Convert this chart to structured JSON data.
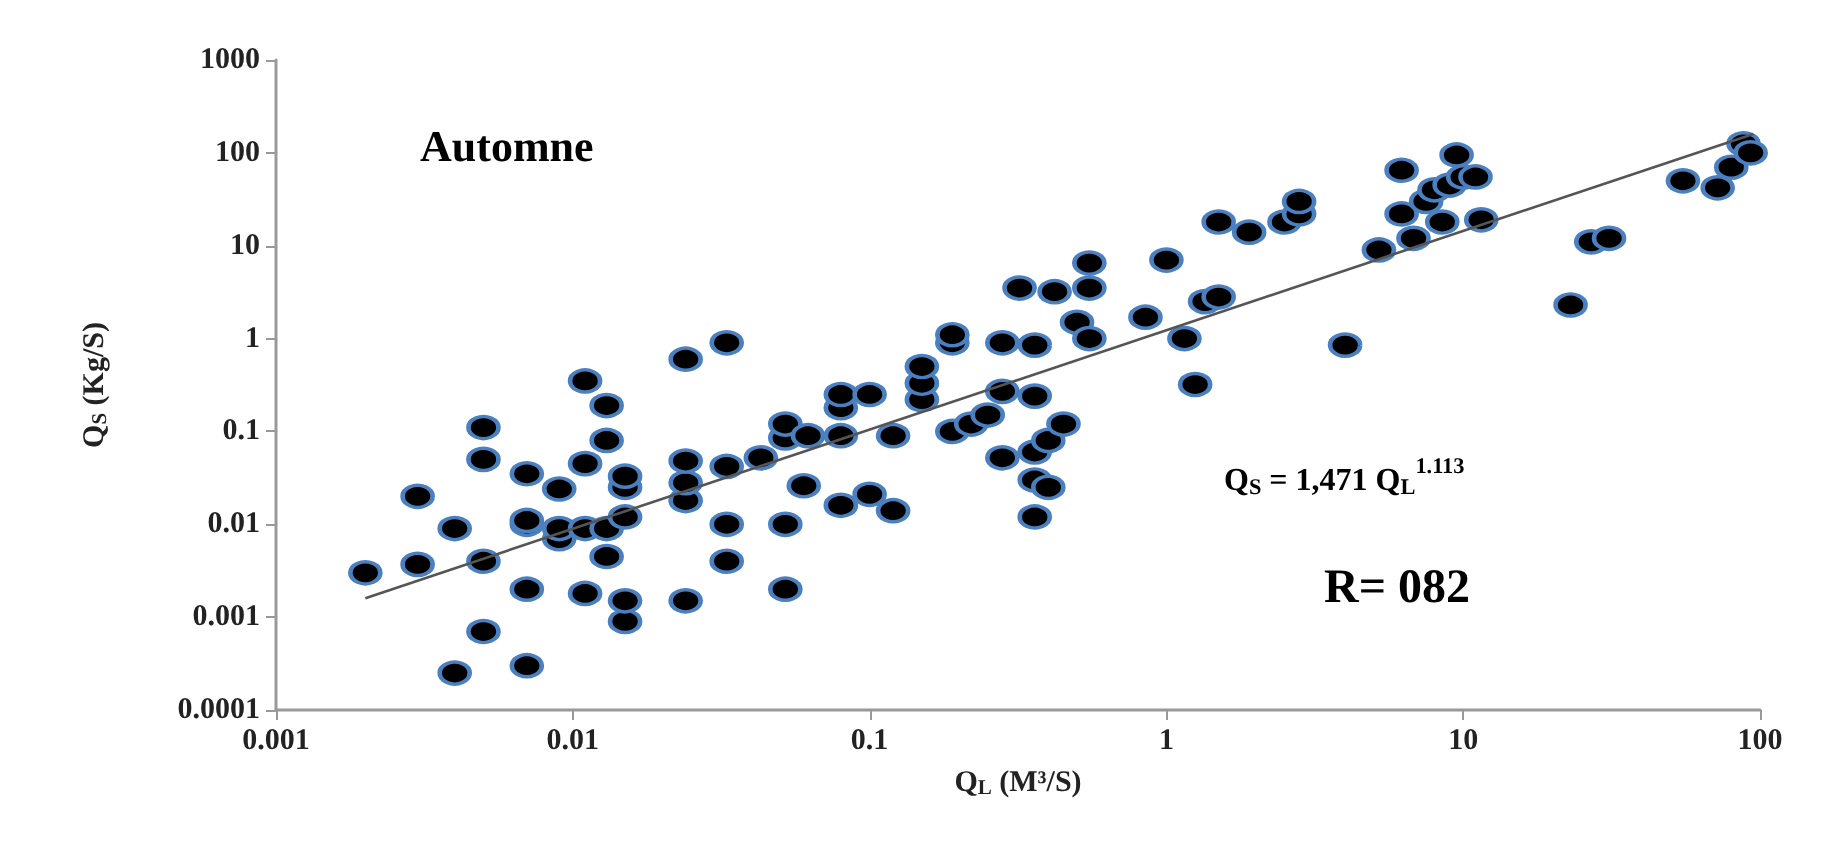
{
  "chart_data": {
    "type": "scatter",
    "xlabel": "Q$_{L}$ (M³/S)",
    "ylabel": "Q$_{S}$ (Kg/S)",
    "log": "xy",
    "grid": false,
    "marker": "circle",
    "xlim": [
      0.001,
      100
    ],
    "xticks": [
      0.001,
      0.01,
      0.1,
      1,
      10,
      100
    ],
    "ylim": [
      0.0001,
      1000
    ],
    "yticks": [
      0.0001,
      0.001,
      0.01,
      0.1,
      1,
      10,
      100,
      1000
    ],
    "annotations": [
      "Automne",
      "Q$_{S}$ = 1,471 Q$_{L}$$^{1.113}$",
      "R= 082"
    ],
    "series": [
      {
        "color": "#000000",
        "x": [
          0.002,
          0.003,
          0.003,
          0.004,
          0.004,
          0.005,
          0.005,
          0.005,
          0.005,
          0.007,
          0.007,
          0.007,
          0.007,
          0.007,
          0.009,
          0.009,
          0.009,
          0.011,
          0.011,
          0.011,
          0.011,
          0.013,
          0.013,
          0.013,
          0.013,
          0.015,
          0.015,
          0.015,
          0.015,
          0.015,
          0.024,
          0.024,
          0.024,
          0.024,
          0.024,
          0.033,
          0.033,
          0.033,
          0.033,
          0.043,
          0.052,
          0.052,
          0.052,
          0.052,
          0.06,
          0.062,
          0.08,
          0.08,
          0.08,
          0.08,
          0.1,
          0.1,
          0.12,
          0.12,
          0.15,
          0.15,
          0.15,
          0.19,
          0.19,
          0.19,
          0.22,
          0.25,
          0.28,
          0.28,
          0.28,
          0.32,
          0.36,
          0.36,
          0.36,
          0.36,
          0.36,
          0.4,
          0.4,
          0.42,
          0.45,
          0.5,
          0.55,
          0.55,
          0.55,
          0.85,
          1.0,
          1.15,
          1.25,
          1.35,
          1.5,
          1.5,
          1.9,
          2.5,
          2.8,
          2.8,
          4,
          5.2,
          6.2,
          6.2,
          6.8,
          7.5,
          8,
          8.5,
          9,
          9.5,
          10,
          11,
          11.5,
          23,
          27,
          31,
          55,
          72,
          80,
          88,
          93
        ],
        "values": [
          0.003,
          0.0037,
          0.02,
          0.009,
          0.00025,
          0.0007,
          0.004,
          0.05,
          0.11,
          0.0003,
          0.002,
          0.01,
          0.035,
          0.011,
          0.007,
          0.009,
          0.024,
          0.0018,
          0.009,
          0.045,
          0.35,
          0.0045,
          0.009,
          0.08,
          0.19,
          0.0009,
          0.0015,
          0.012,
          0.025,
          0.033,
          0.0015,
          0.018,
          0.028,
          0.048,
          0.6,
          0.004,
          0.01,
          0.042,
          0.9,
          0.052,
          0.002,
          0.01,
          0.085,
          0.12,
          0.026,
          0.09,
          0.016,
          0.09,
          0.18,
          0.25,
          0.021,
          0.25,
          0.014,
          0.09,
          0.22,
          0.33,
          0.5,
          0.1,
          0.9,
          1.1,
          0.12,
          0.15,
          0.052,
          0.27,
          0.9,
          3.5,
          0.012,
          0.03,
          0.06,
          0.24,
          0.85,
          0.025,
          0.08,
          3.2,
          0.12,
          1.5,
          1.0,
          3.5,
          6.5,
          1.7,
          7,
          1.0,
          0.32,
          2.5,
          2.8,
          18,
          14,
          18,
          22,
          30,
          0.85,
          9,
          22,
          65,
          12,
          30,
          40,
          18,
          45,
          95,
          55,
          55,
          19,
          2.3,
          11,
          12,
          50,
          42,
          70,
          125,
          100
        ]
      },
      {
        "type": "line",
        "color": "#555555",
        "marker": "none",
        "x": [
          0.002,
          95
        ],
        "values": [
          0.0016,
          160
        ]
      }
    ]
  }
}
